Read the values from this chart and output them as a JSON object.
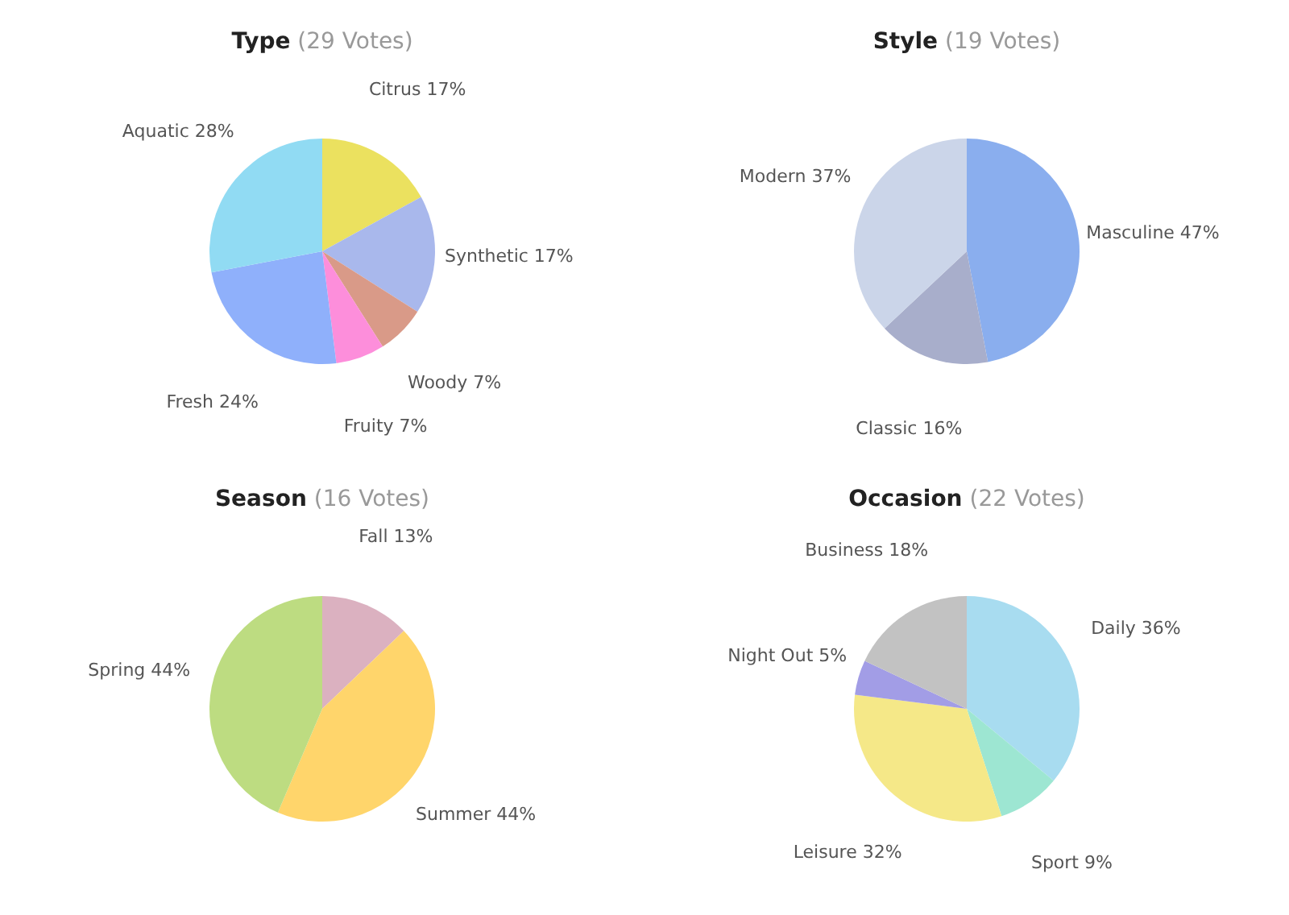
{
  "chart_data": [
    {
      "type": "pie",
      "title": "Type",
      "subtitle": "(29 Votes)",
      "categories": [
        "Citrus",
        "Synthetic",
        "Woody",
        "Fruity",
        "Fresh",
        "Aquatic"
      ],
      "values": [
        17,
        17,
        7,
        7,
        24,
        28
      ],
      "value_labels": [
        "17%",
        "17%",
        "7%",
        "7%",
        "24%",
        "28%"
      ],
      "colors": [
        "#ebe15f",
        "#a9b8ec",
        "#d99a88",
        "#fd8edb",
        "#8fb0fb",
        "#91dbf3"
      ]
    },
    {
      "type": "pie",
      "title": "Style",
      "subtitle": "(19 Votes)",
      "categories": [
        "Masculine",
        "Classic",
        "Modern"
      ],
      "values": [
        47,
        16,
        37
      ],
      "value_labels": [
        "47%",
        "16%",
        "37%"
      ],
      "colors": [
        "#8aaeee",
        "#a8aecb",
        "#cbd5e9"
      ]
    },
    {
      "type": "pie",
      "title": "Season",
      "subtitle": "(16 Votes)",
      "categories": [
        "Fall",
        "Summer",
        "Spring"
      ],
      "values": [
        13,
        44,
        44
      ],
      "value_labels": [
        "13%",
        "44%",
        "44%"
      ],
      "colors": [
        "#dbb1c0",
        "#ffd56b",
        "#bddc81"
      ]
    },
    {
      "type": "pie",
      "title": "Occasion",
      "subtitle": "(22 Votes)",
      "categories": [
        "Daily",
        "Sport",
        "Leisure",
        "Night Out",
        "Business"
      ],
      "values": [
        36,
        9,
        32,
        5,
        18
      ],
      "value_labels": [
        "36%",
        "9%",
        "32%",
        "5%",
        "18%"
      ],
      "colors": [
        "#a8dcf0",
        "#9de6d2",
        "#f5e888",
        "#a29de6",
        "#c2c2c2"
      ]
    }
  ]
}
